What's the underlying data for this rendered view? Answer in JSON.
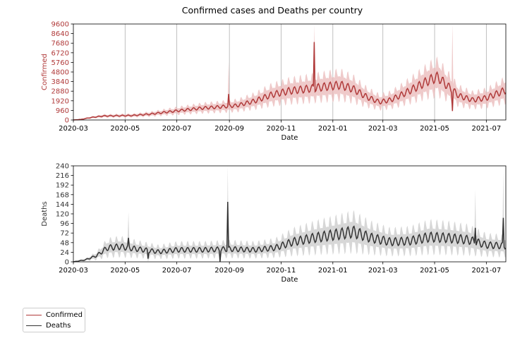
{
  "chart_data": {
    "title": "Confirmed cases and Deaths per country",
    "legend_placement": "lower-left (outside axes)",
    "legend": [
      {
        "label": "Confirmed",
        "color": "#b03a3a"
      },
      {
        "label": "Deaths",
        "color": "#333333"
      }
    ],
    "x_tick_labels": [
      "2020-03",
      "2020-05",
      "2020-07",
      "2020-09",
      "2020-11",
      "2021-01",
      "2021-03",
      "2021-05",
      "2021-07"
    ],
    "x_ticks": [
      "2020-03-01",
      "2020-05-01",
      "2020-07-01",
      "2020-09-01",
      "2020-11-01",
      "2021-01-01",
      "2021-03-01",
      "2021-05-01",
      "2021-07-01"
    ],
    "xlim": [
      "2020-03-01",
      "2021-07-24"
    ],
    "charts": [
      {
        "type": "line",
        "panel": "top",
        "xlabel": "Date",
        "ylabel": "Confirmed",
        "ylim": [
          0,
          9600
        ],
        "y_ticks": [
          0,
          960,
          1920,
          2880,
          3840,
          4800,
          5760,
          6720,
          7680,
          8640,
          9600
        ],
        "grid": "vertical lines at major x ticks",
        "series": [
          {
            "name": "Confirmed",
            "color": "#b03a3a",
            "band_color": "#e9b8b8",
            "weekly_oscillation_amplitude_fraction": 0.12,
            "band_width_fraction": 0.38,
            "points": [
              {
                "x": "2020-03-01",
                "y": 0
              },
              {
                "x": "2020-03-10",
                "y": 60
              },
              {
                "x": "2020-03-22",
                "y": 250
              },
              {
                "x": "2020-04-05",
                "y": 400
              },
              {
                "x": "2020-04-25",
                "y": 430
              },
              {
                "x": "2020-05-10",
                "y": 450
              },
              {
                "x": "2020-06-01",
                "y": 600
              },
              {
                "x": "2020-06-20",
                "y": 800
              },
              {
                "x": "2020-07-10",
                "y": 1000
              },
              {
                "x": "2020-08-01",
                "y": 1200
              },
              {
                "x": "2020-08-20",
                "y": 1300
              },
              {
                "x": "2020-09-10",
                "y": 1450
              },
              {
                "x": "2020-10-01",
                "y": 1900
              },
              {
                "x": "2020-10-20",
                "y": 2500
              },
              {
                "x": "2020-11-10",
                "y": 2900
              },
              {
                "x": "2020-12-01",
                "y": 3100
              },
              {
                "x": "2020-12-20",
                "y": 3300
              },
              {
                "x": "2021-01-10",
                "y": 3500
              },
              {
                "x": "2021-01-25",
                "y": 3100
              },
              {
                "x": "2021-02-10",
                "y": 2300
              },
              {
                "x": "2021-02-25",
                "y": 1800
              },
              {
                "x": "2021-03-10",
                "y": 2000
              },
              {
                "x": "2021-03-25",
                "y": 2600
              },
              {
                "x": "2021-04-10",
                "y": 3300
              },
              {
                "x": "2021-04-25",
                "y": 4000
              },
              {
                "x": "2021-05-05",
                "y": 4300
              },
              {
                "x": "2021-05-15",
                "y": 3500
              },
              {
                "x": "2021-05-30",
                "y": 2400
              },
              {
                "x": "2021-06-15",
                "y": 2000
              },
              {
                "x": "2021-07-01",
                "y": 2200
              },
              {
                "x": "2021-07-24",
                "y": 3000
              }
            ],
            "spikes": [
              {
                "x": "2020-12-10",
                "y": 7800,
                "band_top": 9600
              },
              {
                "x": "2020-08-31",
                "y": 2600,
                "band_top": 5800
              },
              {
                "x": "2021-05-22",
                "y": 900,
                "band_top": 9600
              }
            ]
          }
        ]
      },
      {
        "type": "line",
        "panel": "bottom",
        "xlabel": "Date",
        "ylabel": "Deaths",
        "ylim": [
          0,
          240
        ],
        "y_ticks": [
          0,
          24,
          48,
          72,
          96,
          120,
          144,
          168,
          192,
          216,
          240
        ],
        "grid": "none",
        "series": [
          {
            "name": "Deaths",
            "color": "#333333",
            "band_color": "#c9c9c9",
            "weekly_oscillation_amplitude_fraction": 0.2,
            "band_width_fraction": 0.55,
            "points": [
              {
                "x": "2020-03-01",
                "y": 0
              },
              {
                "x": "2020-03-15",
                "y": 5
              },
              {
                "x": "2020-03-28",
                "y": 15
              },
              {
                "x": "2020-04-10",
                "y": 35
              },
              {
                "x": "2020-04-25",
                "y": 38
              },
              {
                "x": "2020-05-15",
                "y": 32
              },
              {
                "x": "2020-06-10",
                "y": 25
              },
              {
                "x": "2020-07-01",
                "y": 30
              },
              {
                "x": "2020-08-01",
                "y": 30
              },
              {
                "x": "2020-09-01",
                "y": 32
              },
              {
                "x": "2020-10-01",
                "y": 30
              },
              {
                "x": "2020-10-25",
                "y": 35
              },
              {
                "x": "2020-11-15",
                "y": 50
              },
              {
                "x": "2020-12-10",
                "y": 60
              },
              {
                "x": "2021-01-10",
                "y": 70
              },
              {
                "x": "2021-01-25",
                "y": 75
              },
              {
                "x": "2021-02-15",
                "y": 60
              },
              {
                "x": "2021-03-10",
                "y": 50
              },
              {
                "x": "2021-04-01",
                "y": 52
              },
              {
                "x": "2021-04-25",
                "y": 62
              },
              {
                "x": "2021-05-15",
                "y": 60
              },
              {
                "x": "2021-06-10",
                "y": 55
              },
              {
                "x": "2021-07-01",
                "y": 42
              },
              {
                "x": "2021-07-24",
                "y": 40
              }
            ],
            "spikes": [
              {
                "x": "2020-08-30",
                "y": 150,
                "band_top": 240
              },
              {
                "x": "2021-07-21",
                "y": 110,
                "band_top": 225
              },
              {
                "x": "2020-05-05",
                "y": 60,
                "band_top": 125
              },
              {
                "x": "2021-06-18",
                "y": 85,
                "band_top": 180
              }
            ],
            "dips": [
              {
                "x": "2020-08-21",
                "y": 0
              },
              {
                "x": "2020-05-28",
                "y": 8
              }
            ]
          }
        ]
      }
    ]
  }
}
